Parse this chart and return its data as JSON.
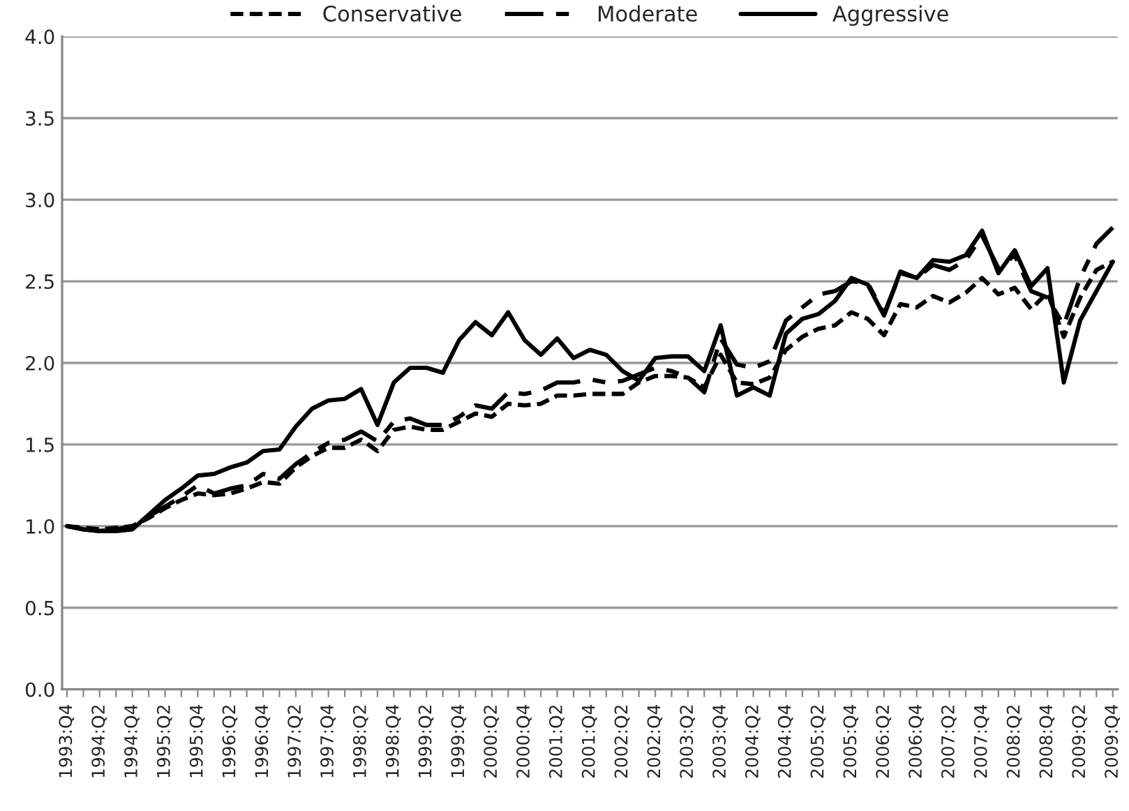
{
  "chart_data": {
    "type": "line",
    "categories": [
      "1993:Q4",
      null,
      "1994:Q2",
      null,
      "1994:Q4",
      null,
      "1995:Q2",
      null,
      "1995:Q4",
      null,
      "1996:Q2",
      null,
      "1996:Q4",
      null,
      "1997:Q2",
      null,
      "1997:Q4",
      null,
      "1998:Q2",
      null,
      "1998:Q4",
      null,
      "1999:Q2",
      null,
      "1999:Q4",
      null,
      "2000:Q2",
      null,
      "2000:Q4",
      null,
      "2001:Q2",
      null,
      "2001:Q4",
      null,
      "2002:Q2",
      null,
      "2002:Q4",
      null,
      "2003:Q2",
      null,
      "2003:Q4",
      null,
      "2004:Q2",
      null,
      "2004:Q4",
      null,
      "2005:Q2",
      null,
      "2005:Q4",
      null,
      "2006:Q2",
      null,
      "2006:Q4",
      null,
      "2007:Q2",
      null,
      "2007:Q4",
      null,
      "2008:Q2",
      null,
      "2008:Q4",
      null,
      "2009:Q2",
      null,
      "2009:Q4"
    ],
    "series": [
      {
        "name": "Conservative",
        "color": "#000000",
        "line_style": "dotted",
        "values": [
          1.0,
          0.99,
          0.98,
          0.99,
          1.0,
          1.05,
          1.11,
          1.16,
          1.2,
          1.19,
          1.2,
          1.23,
          1.27,
          1.26,
          1.36,
          1.43,
          1.48,
          1.48,
          1.53,
          1.46,
          1.59,
          1.61,
          1.59,
          1.59,
          1.64,
          1.69,
          1.67,
          1.75,
          1.74,
          1.75,
          1.8,
          1.8,
          1.81,
          1.81,
          1.81,
          1.88,
          1.92,
          1.92,
          1.91,
          1.85,
          2.05,
          1.88,
          1.87,
          1.91,
          2.08,
          2.16,
          2.21,
          2.23,
          2.31,
          2.27,
          2.17,
          2.36,
          2.34,
          2.41,
          2.37,
          2.43,
          2.52,
          2.42,
          2.46,
          2.33,
          2.43,
          2.16,
          2.4,
          2.57,
          2.62
        ]
      },
      {
        "name": "Moderate",
        "color": "#000000",
        "line_style": "dashed",
        "values": [
          1.0,
          0.98,
          0.97,
          0.98,
          1.0,
          1.06,
          1.12,
          1.18,
          1.25,
          1.2,
          1.23,
          1.25,
          1.32,
          1.29,
          1.38,
          1.45,
          1.51,
          1.53,
          1.58,
          1.52,
          1.64,
          1.66,
          1.62,
          1.62,
          1.67,
          1.74,
          1.72,
          1.82,
          1.81,
          1.83,
          1.88,
          1.88,
          1.9,
          1.88,
          1.89,
          1.93,
          1.97,
          1.95,
          1.91,
          1.82,
          2.15,
          1.99,
          1.97,
          2.01,
          2.26,
          2.34,
          2.42,
          2.44,
          2.5,
          2.49,
          2.3,
          2.55,
          2.52,
          2.6,
          2.57,
          2.63,
          2.78,
          2.58,
          2.66,
          2.44,
          2.4,
          2.23,
          2.52,
          2.73,
          2.83
        ]
      },
      {
        "name": "Aggressive",
        "color": "#000000",
        "line_style": "solid",
        "values": [
          1.0,
          0.98,
          0.97,
          0.97,
          0.98,
          1.07,
          1.16,
          1.23,
          1.31,
          1.32,
          1.36,
          1.39,
          1.46,
          1.47,
          1.61,
          1.72,
          1.77,
          1.78,
          1.84,
          1.62,
          1.88,
          1.97,
          1.97,
          1.94,
          2.14,
          2.25,
          2.17,
          2.31,
          2.14,
          2.05,
          2.15,
          2.03,
          2.08,
          2.05,
          1.95,
          1.89,
          2.03,
          2.04,
          2.04,
          1.95,
          2.23,
          1.8,
          1.85,
          1.8,
          2.18,
          2.27,
          2.3,
          2.38,
          2.52,
          2.48,
          2.29,
          2.56,
          2.52,
          2.63,
          2.62,
          2.66,
          2.81,
          2.55,
          2.69,
          2.47,
          2.58,
          1.88,
          2.26,
          2.44,
          2.62
        ]
      }
    ],
    "ylim": [
      0,
      4
    ],
    "yticks": [
      {
        "value": 0,
        "label": "0.0"
      },
      {
        "value": 0.5,
        "label": "0.5"
      },
      {
        "value": 1,
        "label": "1.0"
      },
      {
        "value": 1.5,
        "label": "1.5"
      },
      {
        "value": 2,
        "label": "2.0"
      },
      {
        "value": 2.5,
        "label": "2.5"
      },
      {
        "value": 3,
        "label": "3.0"
      },
      {
        "value": 3.5,
        "label": "3.5"
      },
      {
        "value": 4,
        "label": "4.0"
      }
    ],
    "grid": "y",
    "legend": "top"
  }
}
